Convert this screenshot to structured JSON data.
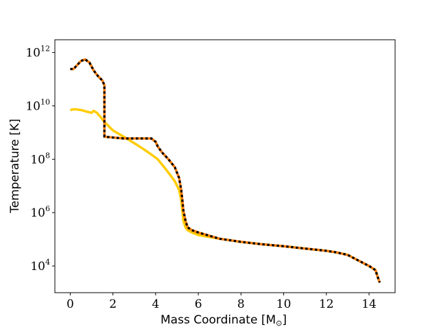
{
  "chart_data": {
    "type": "line",
    "title": "",
    "xlabel": "Mass Coordinate [M",
    "xlabel_symbol": "⊙",
    "xlabel_suffix": "]",
    "ylabel": "Temperature [K]",
    "xlim": [
      -0.72,
      15.22
    ],
    "ylim": [
      1000,
      3000000000000
    ],
    "yscale": "log",
    "grid": false,
    "xticks": [
      0,
      2,
      4,
      6,
      8,
      10,
      12,
      14
    ],
    "xtick_labels": [
      "0",
      "2",
      "4",
      "6",
      "8",
      "10",
      "12",
      "14"
    ],
    "yticks": [
      10000,
      1000000,
      100000000,
      10000000000,
      1000000000000
    ],
    "ytick_base": "10",
    "ytick_exponents": [
      "4",
      "6",
      "8",
      "10",
      "12"
    ],
    "series": [
      {
        "color": "#FFCC00",
        "style": "solid",
        "x": [
          0.0,
          0.2,
          0.5,
          0.8,
          1.0,
          1.1,
          1.25,
          1.4,
          1.6,
          2.0,
          2.5,
          3.0,
          3.4,
          3.8,
          4.1,
          4.5,
          4.9,
          5.1,
          5.2,
          5.25,
          5.3,
          5.4,
          5.5,
          5.7,
          6.0,
          7.0,
          8.0,
          9.0,
          10.0,
          11.0,
          12.0,
          12.5,
          13.0,
          13.5,
          14.0,
          14.3,
          14.4,
          14.5
        ],
        "y": [
          7000000000.0,
          7500000000.0,
          7000000000.0,
          6000000000.0,
          5500000000.0,
          6500000000.0,
          5500000000.0,
          4000000000.0,
          2500000000.0,
          1200000000.0,
          700000000.0,
          400000000.0,
          250000000.0,
          150000000.0,
          100000000.0,
          40000000.0,
          15000000.0,
          7000000.0,
          3000000.0,
          1200000.0,
          500000.0,
          280000.0,
          220000.0,
          180000.0,
          145000.0,
          105000.0,
          80000.0,
          65000.0,
          55000.0,
          45000.0,
          37000.0,
          32000.0,
          26000.0,
          16000.0,
          10000.0,
          7000.0,
          4000.0,
          2400.0
        ]
      },
      {
        "color": "#FF7F0E",
        "style": "solid",
        "x": [
          0.0,
          0.15,
          0.3,
          0.5,
          0.7,
          0.9,
          1.1,
          1.3,
          1.5,
          1.6,
          1.6,
          1.6,
          1.6,
          1.6,
          2.0,
          2.5,
          3.0,
          3.5,
          3.8,
          4.0,
          4.1,
          4.3,
          4.6,
          4.9,
          5.1,
          5.2,
          5.25,
          5.3,
          5.4,
          5.5,
          5.7,
          6.0,
          7.0,
          8.0,
          9.0,
          10.0,
          11.0,
          12.0,
          12.5,
          13.0,
          13.5,
          14.0,
          14.3,
          14.4,
          14.5
        ],
        "y": [
          240000000000.0,
          240000000000.0,
          320000000000.0,
          480000000000.0,
          550000000000.0,
          420000000000.0,
          210000000000.0,
          130000000000.0,
          90000000000.0,
          60000000000.0,
          40000000000.0,
          5000000000.0,
          2000000000.0,
          700000000.0,
          650000000.0,
          600000000.0,
          600000000.0,
          600000000.0,
          600000000.0,
          450000000.0,
          300000000.0,
          180000000.0,
          100000000.0,
          50000000.0,
          20000000.0,
          7000000.0,
          3000000.0,
          1200000.0,
          500000.0,
          280000.0,
          220000.0,
          180000.0,
          105000.0,
          80000.0,
          65000.0,
          55000.0,
          45000.0,
          37000.0,
          32000.0,
          26000.0,
          16000.0,
          10000.0,
          7000.0,
          4000.0,
          2400.0
        ]
      },
      {
        "color": "#000000",
        "style": "dotted",
        "x": [
          0.0,
          0.15,
          0.3,
          0.5,
          0.7,
          0.9,
          1.1,
          1.3,
          1.5,
          1.6,
          1.6,
          1.6,
          1.6,
          1.6,
          2.0,
          2.5,
          3.0,
          3.5,
          3.8,
          4.0,
          4.1,
          4.3,
          4.6,
          4.9,
          5.1,
          5.2,
          5.25,
          5.3,
          5.4,
          5.5,
          5.7,
          6.0,
          7.0,
          8.0,
          9.0,
          10.0,
          11.0,
          12.0,
          12.5,
          13.0,
          13.5,
          14.0,
          14.3,
          14.4,
          14.5
        ],
        "y": [
          240000000000.0,
          240000000000.0,
          320000000000.0,
          480000000000.0,
          550000000000.0,
          420000000000.0,
          210000000000.0,
          130000000000.0,
          90000000000.0,
          60000000000.0,
          40000000000.0,
          5000000000.0,
          2000000000.0,
          700000000.0,
          650000000.0,
          600000000.0,
          600000000.0,
          600000000.0,
          600000000.0,
          450000000.0,
          300000000.0,
          180000000.0,
          100000000.0,
          50000000.0,
          20000000.0,
          7000000.0,
          3000000.0,
          1200000.0,
          500000.0,
          280000.0,
          220000.0,
          180000.0,
          105000.0,
          80000.0,
          65000.0,
          55000.0,
          45000.0,
          37000.0,
          32000.0,
          26000.0,
          16000.0,
          10000.0,
          7000.0,
          4000.0,
          2400.0
        ]
      }
    ]
  }
}
